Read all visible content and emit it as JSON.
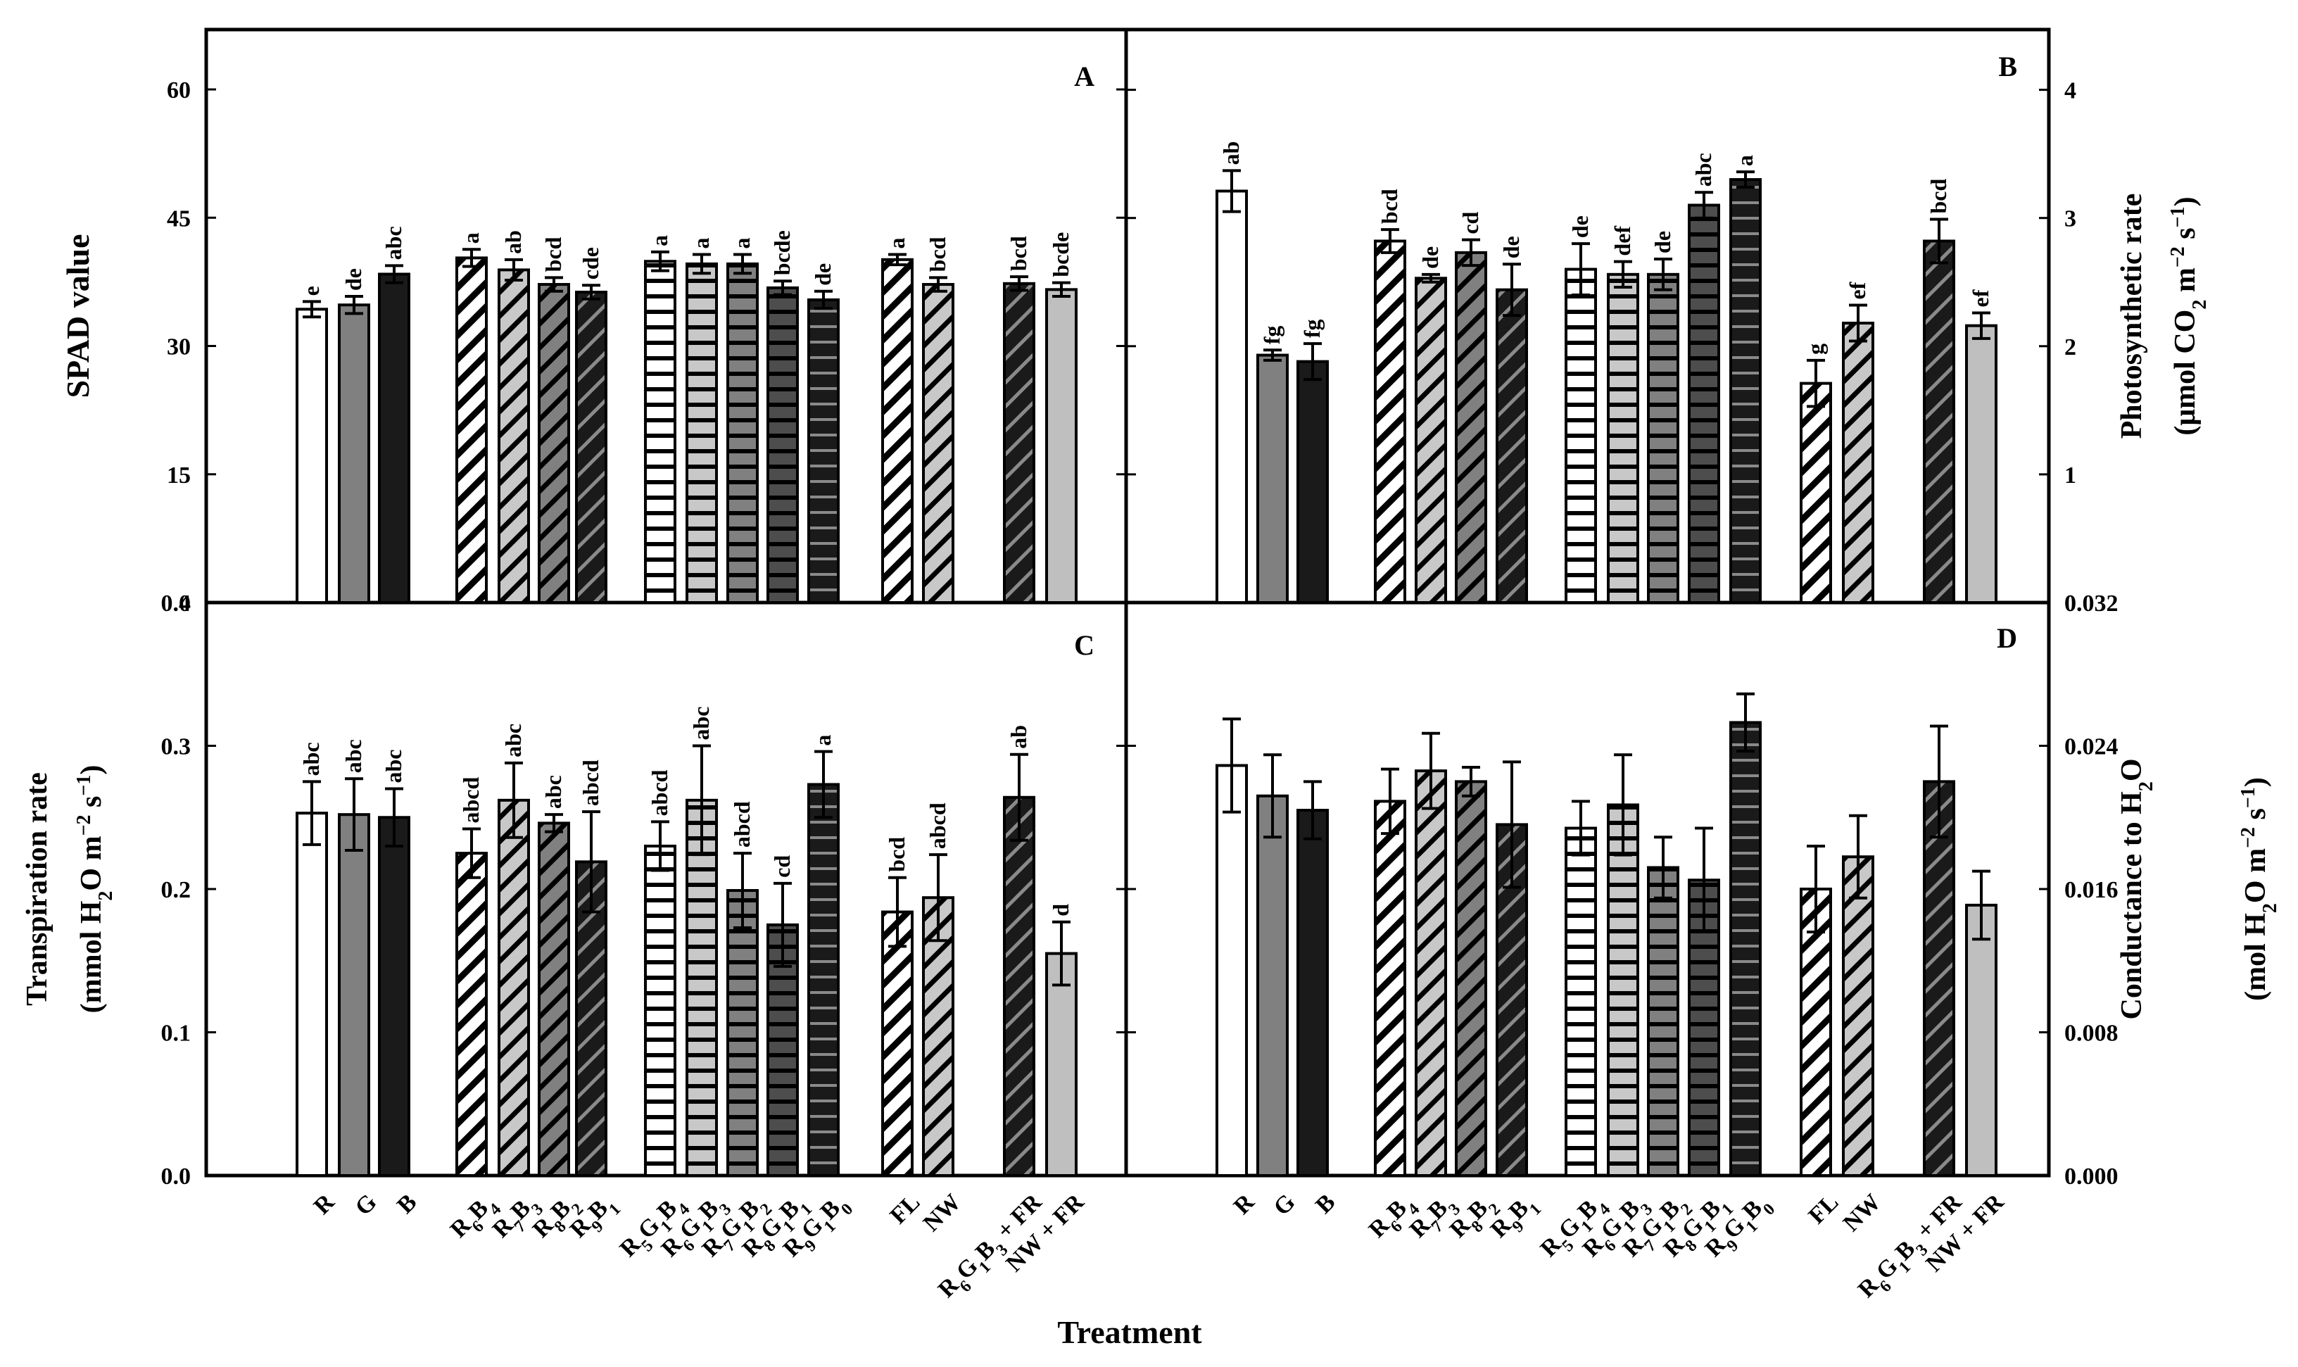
{
  "chart_data": [
    {
      "type": "bar",
      "panel": "A",
      "ylabel": "SPAD value",
      "ylim": [
        0,
        67
      ],
      "yticks": [
        "0",
        "15",
        "30",
        "45",
        "60"
      ],
      "categories": [
        "R",
        "G",
        "B",
        "R6B4",
        "R7B3",
        "R8B2",
        "R9B1",
        "R5G1B4",
        "R6G1B3",
        "R7G1B2",
        "R8G1B1",
        "R9G1B0",
        "FL",
        "NW",
        "R6G1B3 + FR",
        "NW + FR"
      ],
      "values": [
        34.3,
        34.8,
        38.4,
        40.3,
        38.9,
        37.2,
        36.3,
        39.9,
        39.6,
        39.6,
        36.8,
        35.4,
        40.1,
        37.2,
        37.3,
        36.6
      ],
      "errors": [
        0.9,
        1.0,
        1.0,
        1.0,
        1.2,
        0.8,
        0.8,
        1.1,
        1.1,
        1.1,
        0.8,
        1.0,
        0.6,
        0.8,
        0.8,
        0.8
      ],
      "significance": [
        "e",
        "de",
        "abc",
        "a",
        "ab",
        "bcd",
        "cde",
        "a",
        "a",
        "a",
        "bcde",
        "de",
        "a",
        "bcd",
        "bcd",
        "bcde"
      ]
    },
    {
      "type": "bar",
      "panel": "B",
      "ylabel": "Photosynthetic rate",
      "ylabel_unit": "(μmol CO₂ m⁻² s⁻¹)",
      "ylim": [
        0,
        4.47
      ],
      "yticks": [
        "0",
        "1",
        "2",
        "3",
        "4"
      ],
      "categories": [
        "R",
        "G",
        "B",
        "R6B4",
        "R7B3",
        "R8B2",
        "R9B1",
        "R5G1B4",
        "R6G1B3",
        "R7G1B2",
        "R8G1B1",
        "R9G1B0",
        "FL",
        "NW",
        "R6G1B3 + FR",
        "NW + FR"
      ],
      "values": [
        3.21,
        1.93,
        1.88,
        2.82,
        2.53,
        2.73,
        2.44,
        2.6,
        2.56,
        2.56,
        3.1,
        3.3,
        1.71,
        2.18,
        2.82,
        2.16
      ],
      "errors": [
        0.16,
        0.04,
        0.14,
        0.09,
        0.03,
        0.1,
        0.2,
        0.2,
        0.1,
        0.12,
        0.1,
        0.06,
        0.18,
        0.14,
        0.17,
        0.1
      ],
      "significance": [
        "ab",
        "fg",
        "fg",
        "bcd",
        "de",
        "cd",
        "de",
        "de",
        "def",
        "de",
        "abc",
        "a",
        "g",
        "ef",
        "bcd",
        "ef"
      ]
    },
    {
      "type": "bar",
      "panel": "C",
      "ylabel": "Transpiration rate",
      "ylabel_unit": "(mmol H₂O m⁻² s⁻¹)",
      "ylim": [
        0,
        0.4
      ],
      "yticks": [
        "0.0",
        "0.1",
        "0.2",
        "0.3",
        "0.4"
      ],
      "categories": [
        "R",
        "G",
        "B",
        "R6B4",
        "R7B3",
        "R8B2",
        "R9B1",
        "R5G1B4",
        "R6G1B3",
        "R7G1B2",
        "R8G1B1",
        "R9G1B0",
        "FL",
        "NW",
        "R6G1B3 + FR",
        "NW + FR"
      ],
      "values": [
        0.253,
        0.252,
        0.25,
        0.225,
        0.262,
        0.246,
        0.219,
        0.23,
        0.262,
        0.199,
        0.175,
        0.273,
        0.184,
        0.194,
        0.264,
        0.155
      ],
      "errors": [
        0.022,
        0.025,
        0.02,
        0.017,
        0.026,
        0.006,
        0.035,
        0.017,
        0.038,
        0.026,
        0.029,
        0.023,
        0.024,
        0.03,
        0.03,
        0.022
      ],
      "significance": [
        "abc",
        "abc",
        "abc",
        "abcd",
        "abc",
        "abc",
        "abcd",
        "abcd",
        "abc",
        "abcd",
        "cd",
        "a",
        "bcd",
        "abcd",
        "ab",
        "d"
      ]
    },
    {
      "type": "bar",
      "panel": "D",
      "ylabel": "Conductance to H₂O",
      "ylabel_unit": "(mol H₂O m⁻² s⁻¹)",
      "ylim": [
        0,
        0.032
      ],
      "yticks": [
        "0.000",
        "0.008",
        "0.016",
        "0.024",
        "0.032"
      ],
      "categories": [
        "R",
        "G",
        "B",
        "R6B4",
        "R7B3",
        "R8B2",
        "R9B1",
        "R5G1B4",
        "R6G1B3",
        "R7G1B2",
        "R8G1B1",
        "R9G1B0",
        "FL",
        "NW",
        "R6G1B3 + FR",
        "NW + FR"
      ],
      "values": [
        0.0229,
        0.0212,
        0.0204,
        0.0209,
        0.0226,
        0.022,
        0.0196,
        0.0194,
        0.0207,
        0.0172,
        0.0165,
        0.0253,
        0.016,
        0.0178,
        0.022,
        0.0151
      ],
      "errors": [
        0.0026,
        0.0023,
        0.0016,
        0.0018,
        0.0021,
        0.0008,
        0.0035,
        0.0015,
        0.0028,
        0.0017,
        0.0029,
        0.0016,
        0.0024,
        0.0023,
        0.0031,
        0.0019
      ],
      "significance": [
        "",
        "",
        "",
        "",
        "",
        "",
        "",
        "",
        "",
        "",
        "",
        "",
        "",
        "",
        "",
        ""
      ]
    }
  ],
  "x_axis": {
    "title": "Treatment",
    "tick_labels": [
      {
        "base": "R",
        "parts": [
          [
            "R",
            ""
          ]
        ]
      },
      {
        "base": "G",
        "parts": [
          [
            "G",
            ""
          ]
        ]
      },
      {
        "base": "B",
        "parts": [
          [
            "B",
            ""
          ]
        ]
      },
      {
        "base": "R6B4",
        "parts": [
          [
            "R",
            "6"
          ],
          [
            "B",
            "4"
          ]
        ]
      },
      {
        "base": "R7B3",
        "parts": [
          [
            "R",
            "7"
          ],
          [
            "B",
            "3"
          ]
        ]
      },
      {
        "base": "R8B2",
        "parts": [
          [
            "R",
            "8"
          ],
          [
            "B",
            "2"
          ]
        ]
      },
      {
        "base": "R9B1",
        "parts": [
          [
            "R",
            "9"
          ],
          [
            "B",
            "1"
          ]
        ]
      },
      {
        "base": "R5G1B4",
        "parts": [
          [
            "R",
            "5"
          ],
          [
            "G",
            "1"
          ],
          [
            "B",
            "4"
          ]
        ]
      },
      {
        "base": "R6G1B3",
        "parts": [
          [
            "R",
            "6"
          ],
          [
            "G",
            "1"
          ],
          [
            "B",
            "3"
          ]
        ]
      },
      {
        "base": "R7G1B2",
        "parts": [
          [
            "R",
            "7"
          ],
          [
            "G",
            "1"
          ],
          [
            "B",
            "2"
          ]
        ]
      },
      {
        "base": "R8G1B1",
        "parts": [
          [
            "R",
            "8"
          ],
          [
            "G",
            "1"
          ],
          [
            "B",
            "1"
          ]
        ]
      },
      {
        "base": "R9G1B0",
        "parts": [
          [
            "R",
            "9"
          ],
          [
            "G",
            "1"
          ],
          [
            "B",
            "0"
          ]
        ]
      },
      {
        "base": "FL",
        "parts": [
          [
            "FL",
            ""
          ]
        ]
      },
      {
        "base": "NW",
        "parts": [
          [
            "NW",
            ""
          ]
        ]
      },
      {
        "base": "R6G1B3 + FR",
        "parts": [
          [
            "R",
            "6"
          ],
          [
            "G",
            "1"
          ],
          [
            "B",
            "3"
          ],
          [
            " + FR",
            ""
          ]
        ]
      },
      {
        "base": "NW + FR",
        "parts": [
          [
            "NW + FR",
            ""
          ]
        ]
      }
    ]
  },
  "bar_styles": [
    {
      "fill": "#ffffff",
      "pattern": "none"
    },
    {
      "fill": "#808080",
      "pattern": "none"
    },
    {
      "fill": "#1a1a1a",
      "pattern": "none"
    },
    {
      "fill": "#ffffff",
      "pattern": "diagonal"
    },
    {
      "fill": "#c8c8c8",
      "pattern": "diagonal"
    },
    {
      "fill": "#808080",
      "pattern": "diagonal"
    },
    {
      "fill": "#1a1a1a",
      "pattern": "diagonal"
    },
    {
      "fill": "#ffffff",
      "pattern": "horizontal"
    },
    {
      "fill": "#c8c8c8",
      "pattern": "horizontal"
    },
    {
      "fill": "#808080",
      "pattern": "horizontal"
    },
    {
      "fill": "#4d4d4d",
      "pattern": "horizontal"
    },
    {
      "fill": "#1a1a1a",
      "pattern": "horizontal"
    },
    {
      "fill": "#ffffff",
      "pattern": "diagonal"
    },
    {
      "fill": "#c8c8c8",
      "pattern": "diagonal"
    },
    {
      "fill": "#1a1a1a",
      "pattern": "diagonal"
    },
    {
      "fill": "#bfbfbf",
      "pattern": "none"
    }
  ]
}
